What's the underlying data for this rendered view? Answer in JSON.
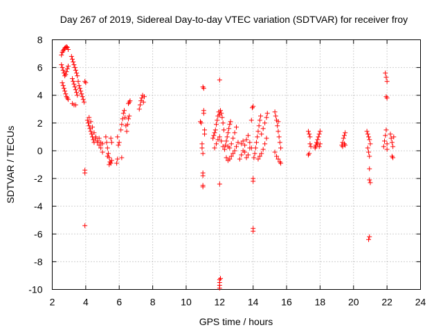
{
  "chart_data": {
    "type": "scatter",
    "title": "Day 267 of 2019, Sidereal Day-to-day VTEC variation (SDTVAR) for receiver froy",
    "xlabel": "GPS time / hours",
    "ylabel": "SDTVAR / TECUs",
    "xlim": [
      2,
      24
    ],
    "ylim": [
      -10,
      8
    ],
    "xticks": [
      2,
      4,
      6,
      8,
      10,
      12,
      14,
      16,
      18,
      20,
      22,
      24
    ],
    "yticks": [
      8,
      6,
      4,
      2,
      0,
      -2,
      -4,
      -6,
      -8,
      -10
    ],
    "grid": true,
    "marker": "+",
    "color": "#ff0000",
    "series": [
      {
        "name": "SDTVAR",
        "points": [
          [
            2.55,
            6.9
          ],
          [
            2.6,
            7.1
          ],
          [
            2.65,
            7.2
          ],
          [
            2.7,
            7.3
          ],
          [
            2.75,
            7.4
          ],
          [
            2.8,
            7.45
          ],
          [
            2.85,
            7.5
          ],
          [
            2.9,
            7.45
          ],
          [
            2.95,
            7.3
          ],
          [
            2.55,
            6.2
          ],
          [
            2.6,
            6.0
          ],
          [
            2.65,
            5.8
          ],
          [
            2.7,
            5.6
          ],
          [
            2.75,
            5.4
          ],
          [
            2.8,
            5.5
          ],
          [
            2.85,
            5.7
          ],
          [
            2.9,
            5.9
          ],
          [
            2.95,
            6.1
          ],
          [
            2.6,
            4.9
          ],
          [
            2.65,
            4.7
          ],
          [
            2.7,
            4.5
          ],
          [
            2.75,
            4.3
          ],
          [
            2.8,
            4.1
          ],
          [
            2.85,
            3.9
          ],
          [
            2.9,
            3.8
          ],
          [
            2.95,
            3.7
          ],
          [
            3.15,
            6.8
          ],
          [
            3.2,
            6.6
          ],
          [
            3.25,
            6.4
          ],
          [
            3.3,
            6.2
          ],
          [
            3.35,
            6.0
          ],
          [
            3.4,
            5.8
          ],
          [
            3.45,
            5.6
          ],
          [
            3.5,
            5.4
          ],
          [
            3.2,
            5.2
          ],
          [
            3.25,
            5.0
          ],
          [
            3.3,
            4.8
          ],
          [
            3.35,
            4.6
          ],
          [
            3.4,
            4.4
          ],
          [
            3.45,
            4.2
          ],
          [
            3.5,
            4.0
          ],
          [
            3.2,
            3.4
          ],
          [
            3.3,
            3.3
          ],
          [
            3.4,
            3.3
          ],
          [
            3.55,
            5.0
          ],
          [
            3.6,
            4.7
          ],
          [
            3.65,
            4.5
          ],
          [
            3.7,
            4.3
          ],
          [
            3.75,
            4.1
          ],
          [
            3.8,
            3.9
          ],
          [
            3.85,
            3.7
          ],
          [
            3.9,
            3.5
          ],
          [
            3.95,
            5.0
          ],
          [
            4.0,
            4.9
          ],
          [
            3.95,
            -1.4
          ],
          [
            3.95,
            -1.6
          ],
          [
            3.95,
            -5.4
          ],
          [
            4.1,
            2.2
          ],
          [
            4.15,
            2.0
          ],
          [
            4.2,
            1.8
          ],
          [
            4.25,
            1.6
          ],
          [
            4.3,
            1.4
          ],
          [
            4.35,
            1.2
          ],
          [
            4.4,
            1.0
          ],
          [
            4.45,
            0.8
          ],
          [
            4.5,
            0.6
          ],
          [
            4.2,
            2.4
          ],
          [
            4.3,
            2.1
          ],
          [
            4.4,
            1.7
          ],
          [
            4.5,
            1.3
          ],
          [
            4.6,
            1.0
          ],
          [
            4.7,
            0.7
          ],
          [
            4.8,
            0.4
          ],
          [
            4.9,
            0.2
          ],
          [
            5.0,
            -0.1
          ],
          [
            4.6,
            0.9
          ],
          [
            4.7,
            0.6
          ],
          [
            4.8,
            0.9
          ],
          [
            4.9,
            0.6
          ],
          [
            5.0,
            0.5
          ],
          [
            5.2,
            1.0
          ],
          [
            5.25,
            0.6
          ],
          [
            5.3,
            0.2
          ],
          [
            5.35,
            -0.2
          ],
          [
            5.4,
            -0.5
          ],
          [
            5.45,
            -0.8
          ],
          [
            5.5,
            -0.9
          ],
          [
            5.55,
            -0.7
          ],
          [
            5.3,
            -0.4
          ],
          [
            5.4,
            -1.0
          ],
          [
            5.5,
            0.9
          ],
          [
            5.55,
            0.6
          ],
          [
            5.85,
            -0.9
          ],
          [
            5.9,
            -0.6
          ],
          [
            5.95,
            0.4
          ],
          [
            5.9,
            1.0
          ],
          [
            6.0,
            0.6
          ],
          [
            6.15,
            -0.5
          ],
          [
            6.1,
            1.5
          ],
          [
            6.15,
            1.9
          ],
          [
            6.2,
            2.3
          ],
          [
            6.25,
            2.7
          ],
          [
            6.3,
            2.9
          ],
          [
            6.35,
            2.4
          ],
          [
            6.4,
            1.8
          ],
          [
            6.45,
            1.4
          ],
          [
            6.5,
            1.9
          ],
          [
            6.55,
            2.3
          ],
          [
            6.6,
            2.5
          ],
          [
            6.55,
            3.4
          ],
          [
            6.6,
            3.5
          ],
          [
            6.65,
            3.6
          ],
          [
            7.2,
            3.0
          ],
          [
            7.25,
            3.3
          ],
          [
            7.3,
            3.6
          ],
          [
            7.35,
            3.8
          ],
          [
            7.4,
            4.0
          ],
          [
            7.45,
            3.5
          ],
          [
            7.5,
            3.9
          ],
          [
            10.85,
            2.1
          ],
          [
            10.9,
            2.0
          ],
          [
            10.95,
            0.2
          ],
          [
            11.0,
            -0.2
          ],
          [
            10.95,
            0.5
          ],
          [
            11.0,
            4.6
          ],
          [
            11.05,
            4.5
          ],
          [
            11.0,
            -1.6
          ],
          [
            11.0,
            -1.8
          ],
          [
            11.0,
            -2.5
          ],
          [
            11.0,
            -2.6
          ],
          [
            11.05,
            2.9
          ],
          [
            11.05,
            2.7
          ],
          [
            11.1,
            1.2
          ],
          [
            11.1,
            1.5
          ],
          [
            11.6,
            0.9
          ],
          [
            11.65,
            1.1
          ],
          [
            11.7,
            1.3
          ],
          [
            11.75,
            1.5
          ],
          [
            11.8,
            1.9
          ],
          [
            11.85,
            2.2
          ],
          [
            11.9,
            2.5
          ],
          [
            11.95,
            2.8
          ],
          [
            12.0,
            2.6
          ],
          [
            12.05,
            2.9
          ],
          [
            12.1,
            2.7
          ],
          [
            12.15,
            2.4
          ],
          [
            12.2,
            2.0
          ],
          [
            12.25,
            1.5
          ],
          [
            11.7,
            0.2
          ],
          [
            11.8,
            0.5
          ],
          [
            11.9,
            0.8
          ],
          [
            12.0,
            1.0
          ],
          [
            12.1,
            0.7
          ],
          [
            12.2,
            0.3
          ],
          [
            12.0,
            5.1
          ],
          [
            12.0,
            -2.4
          ],
          [
            12.0,
            -9.3
          ],
          [
            12.0,
            -9.5
          ],
          [
            12.0,
            -9.7
          ],
          [
            12.0,
            -9.9
          ],
          [
            12.05,
            -9.2
          ],
          [
            12.3,
            0.1
          ],
          [
            12.35,
            0.4
          ],
          [
            12.4,
            0.7
          ],
          [
            12.45,
            1.0
          ],
          [
            12.5,
            1.3
          ],
          [
            12.55,
            1.6
          ],
          [
            12.6,
            1.9
          ],
          [
            12.65,
            2.1
          ],
          [
            12.4,
            -0.5
          ],
          [
            12.5,
            -0.7
          ],
          [
            12.6,
            -0.6
          ],
          [
            12.7,
            -0.4
          ],
          [
            12.8,
            -0.2
          ],
          [
            12.9,
            0.0
          ],
          [
            13.0,
            0.3
          ],
          [
            13.1,
            0.6
          ],
          [
            12.5,
            0.3
          ],
          [
            12.6,
            0.2
          ],
          [
            12.7,
            0.5
          ],
          [
            12.8,
            0.9
          ],
          [
            12.9,
            1.3
          ],
          [
            13.0,
            1.7
          ],
          [
            13.2,
            -0.6
          ],
          [
            13.3,
            -0.3
          ],
          [
            13.4,
            0.0
          ],
          [
            13.5,
            0.4
          ],
          [
            13.6,
            0.8
          ],
          [
            13.7,
            1.1
          ],
          [
            13.8,
            0.6
          ],
          [
            13.9,
            0.2
          ],
          [
            13.3,
            0.5
          ],
          [
            13.4,
            0.7
          ],
          [
            13.5,
            -0.1
          ],
          [
            13.6,
            -0.5
          ],
          [
            13.7,
            -0.3
          ],
          [
            13.8,
            0.2
          ],
          [
            13.9,
            2.2
          ],
          [
            13.95,
            3.1
          ],
          [
            14.0,
            3.2
          ],
          [
            14.0,
            -2.0
          ],
          [
            14.0,
            -2.2
          ],
          [
            14.0,
            -5.6
          ],
          [
            14.0,
            -5.8
          ],
          [
            14.05,
            -0.5
          ],
          [
            14.1,
            -0.2
          ],
          [
            14.15,
            0.2
          ],
          [
            14.2,
            0.6
          ],
          [
            14.25,
            1.0
          ],
          [
            14.3,
            1.4
          ],
          [
            14.35,
            1.8
          ],
          [
            14.4,
            2.2
          ],
          [
            14.45,
            2.5
          ],
          [
            14.3,
            -0.6
          ],
          [
            14.4,
            -0.4
          ],
          [
            14.5,
            -0.2
          ],
          [
            14.6,
            0.1
          ],
          [
            14.7,
            0.5
          ],
          [
            14.8,
            0.9
          ],
          [
            14.5,
            1.2
          ],
          [
            14.6,
            1.6
          ],
          [
            14.7,
            2.0
          ],
          [
            14.8,
            2.4
          ],
          [
            14.85,
            2.7
          ],
          [
            15.3,
            2.8
          ],
          [
            15.35,
            2.5
          ],
          [
            15.4,
            2.2
          ],
          [
            15.45,
            1.8
          ],
          [
            15.5,
            1.4
          ],
          [
            15.55,
            1.0
          ],
          [
            15.6,
            0.6
          ],
          [
            15.65,
            0.2
          ],
          [
            15.3,
            -0.1
          ],
          [
            15.4,
            -0.4
          ],
          [
            15.5,
            -0.6
          ],
          [
            15.6,
            -0.8
          ],
          [
            15.65,
            -0.9
          ],
          [
            15.5,
            2.1
          ],
          [
            17.3,
            1.4
          ],
          [
            17.35,
            1.2
          ],
          [
            17.4,
            1.0
          ],
          [
            17.3,
            -0.3
          ],
          [
            17.35,
            -0.2
          ],
          [
            17.4,
            0.5
          ],
          [
            17.45,
            0.3
          ],
          [
            17.7,
            0.2
          ],
          [
            17.75,
            0.4
          ],
          [
            17.8,
            0.6
          ],
          [
            17.85,
            0.8
          ],
          [
            17.9,
            1.0
          ],
          [
            17.95,
            1.2
          ],
          [
            18.0,
            1.4
          ],
          [
            17.75,
            0.3
          ],
          [
            17.85,
            0.5
          ],
          [
            17.95,
            0.3
          ],
          [
            18.0,
            0.5
          ],
          [
            19.3,
            0.4
          ],
          [
            19.35,
            0.6
          ],
          [
            19.4,
            0.9
          ],
          [
            19.45,
            1.1
          ],
          [
            19.5,
            1.3
          ],
          [
            19.35,
            0.3
          ],
          [
            19.45,
            0.5
          ],
          [
            19.5,
            0.4
          ],
          [
            20.8,
            1.4
          ],
          [
            20.85,
            1.2
          ],
          [
            20.9,
            1.0
          ],
          [
            20.95,
            0.8
          ],
          [
            21.0,
            0.5
          ],
          [
            20.85,
            0.2
          ],
          [
            20.9,
            -0.1
          ],
          [
            20.95,
            -0.4
          ],
          [
            20.95,
            -1.3
          ],
          [
            20.95,
            -2.1
          ],
          [
            21.0,
            -2.3
          ],
          [
            20.95,
            -6.2
          ],
          [
            20.9,
            -6.4
          ],
          [
            21.8,
            0.3
          ],
          [
            21.85,
            0.7
          ],
          [
            21.9,
            1.1
          ],
          [
            21.95,
            1.5
          ],
          [
            22.0,
            0.5
          ],
          [
            22.0,
            0.1
          ],
          [
            21.9,
            5.6
          ],
          [
            21.95,
            5.3
          ],
          [
            22.0,
            5.0
          ],
          [
            21.95,
            3.9
          ],
          [
            22.0,
            3.8
          ],
          [
            22.2,
            1.2
          ],
          [
            22.25,
            0.9
          ],
          [
            22.3,
            0.6
          ],
          [
            22.35,
            0.3
          ],
          [
            22.3,
            -0.4
          ],
          [
            22.35,
            -0.5
          ],
          [
            22.4,
            1.0
          ]
        ]
      }
    ]
  }
}
